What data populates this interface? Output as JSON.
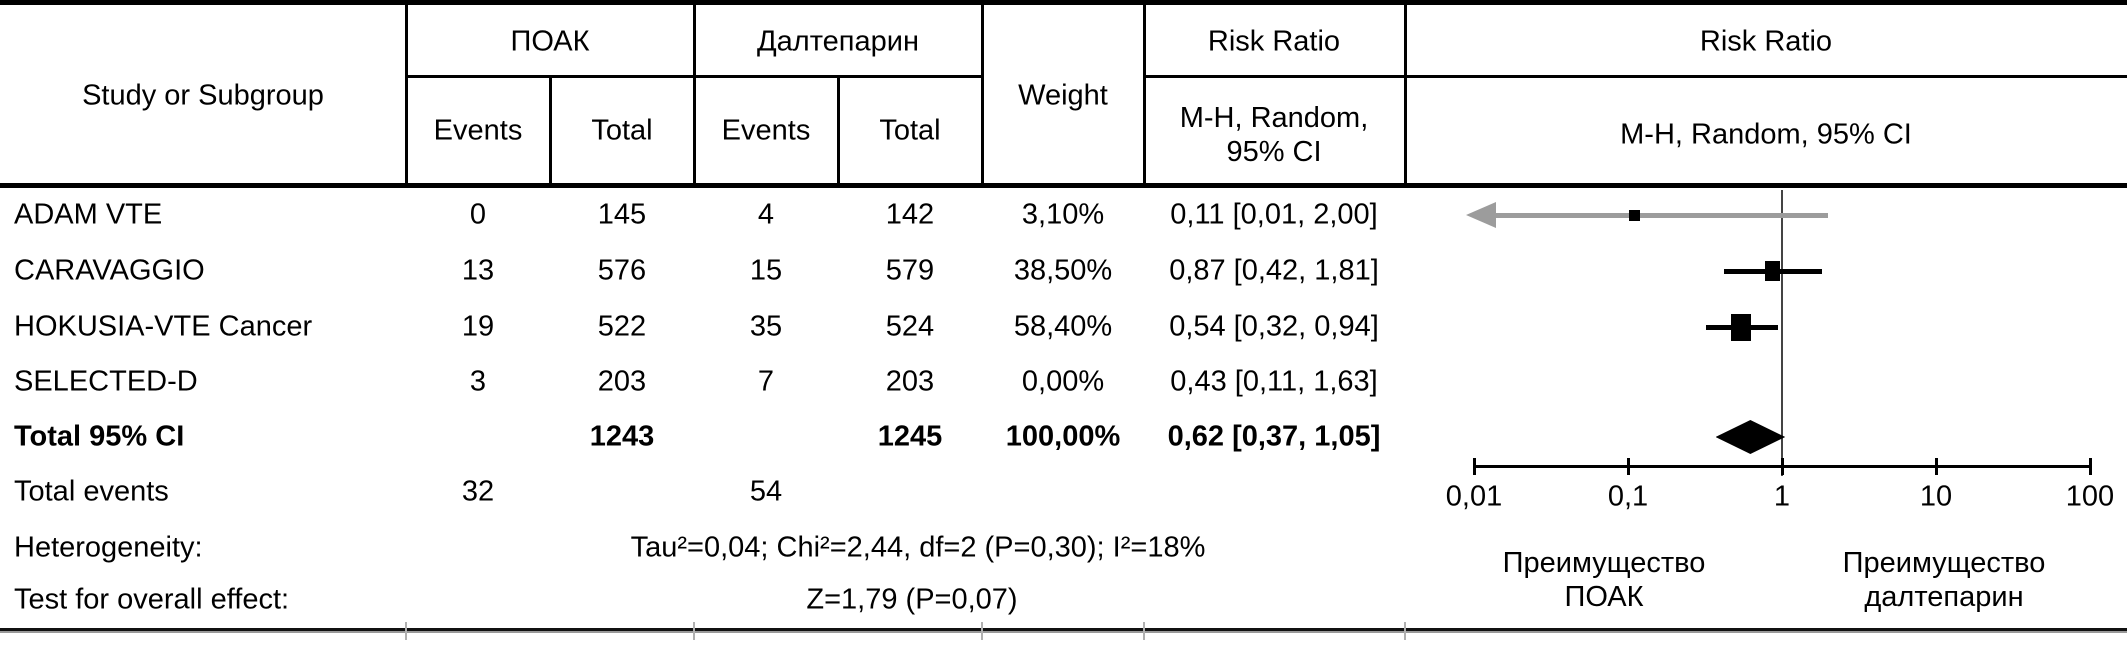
{
  "table": {
    "header": {
      "study": "Study or Subgroup",
      "group1": "ПОАК",
      "group2": "Далтепарин",
      "events1": "Events",
      "total1": "Total",
      "events2": "Events",
      "total2": "Total",
      "weight": "Weight",
      "risk_ratio_left": "Risk Ratio",
      "risk_ratio_right": "Risk Ratio",
      "mh_line1": "M-H, Random,",
      "mh_line2": "95% CI",
      "mh_full": "M-H, Random, 95% CI"
    },
    "rows": [
      {
        "study": "ADAM VTE",
        "e1": "0",
        "t1": "145",
        "e2": "4",
        "t2": "142",
        "weight": "3,10%",
        "rr": "0,11 [0,01, 2,00]"
      },
      {
        "study": "CARAVAGGIO",
        "e1": "13",
        "t1": "576",
        "e2": "15",
        "t2": "579",
        "weight": "38,50%",
        "rr": "0,87 [0,42, 1,81]"
      },
      {
        "study": "HOKUSIA-VTE Cancer",
        "e1": "19",
        "t1": "522",
        "e2": "35",
        "t2": "524",
        "weight": "58,40%",
        "rr": "0,54 [0,32, 0,94]"
      },
      {
        "study": "SELECTED-D",
        "e1": "3",
        "t1": "203",
        "e2": "7",
        "t2": "203",
        "weight": "0,00%",
        "rr": "0,43 [0,11, 1,63]"
      }
    ],
    "total_row": {
      "study": "Total 95% CI",
      "t1": "1243",
      "t2": "1245",
      "weight": "100,00%",
      "rr": "0,62 [0,37, 1,05]"
    },
    "total_events": {
      "label": "Total events",
      "e1": "32",
      "e2": "54"
    },
    "heterogeneity": {
      "label": "Heterogeneity:",
      "stats": "Tau²=0,04; Chi²=2,44, df=2 (P=0,30); I²=18%"
    },
    "overall_effect": {
      "label": "Test for overall effect:",
      "stats": "Z=1,79 (P=0,07)"
    }
  },
  "chart_data": {
    "type": "scatter",
    "subtype": "forest-plot",
    "title": "Risk Ratio M-H, Random, 95% CI",
    "x_axis": {
      "scale": "log",
      "range": [
        0.01,
        100
      ],
      "ticks": [
        "0,01",
        "0,1",
        "1",
        "10",
        "100"
      ],
      "tick_values": [
        0.01,
        0.1,
        1,
        10,
        100
      ]
    },
    "null_line": 1,
    "studies": [
      {
        "name": "ADAM VTE",
        "rr": 0.11,
        "ci_low": 0.01,
        "ci_high": 2.0,
        "weight_pct": 3.1,
        "plotted": true,
        "arrow_left": true
      },
      {
        "name": "CARAVAGGIO",
        "rr": 0.87,
        "ci_low": 0.42,
        "ci_high": 1.81,
        "weight_pct": 38.5,
        "plotted": true,
        "arrow_left": false
      },
      {
        "name": "HOKUSIA-VTE Cancer",
        "rr": 0.54,
        "ci_low": 0.32,
        "ci_high": 0.94,
        "weight_pct": 58.4,
        "plotted": true,
        "arrow_left": false
      },
      {
        "name": "SELECTED-D",
        "rr": 0.43,
        "ci_low": 0.11,
        "ci_high": 1.63,
        "weight_pct": 0.0,
        "plotted": false,
        "arrow_left": false
      }
    ],
    "overall": {
      "label": "Total 95% CI",
      "rr": 0.62,
      "ci_low": 0.37,
      "ci_high": 1.05
    },
    "favours_left_line1": "Преимущество",
    "favours_left_line2": "ПОАК",
    "favours_right_line1": "Преимущество",
    "favours_right_line2": "далтепарин",
    "colors": {
      "marker": "#000000",
      "arrow_line": "#9c9c9c",
      "axis": "#000000",
      "null_line": "#444444"
    }
  }
}
